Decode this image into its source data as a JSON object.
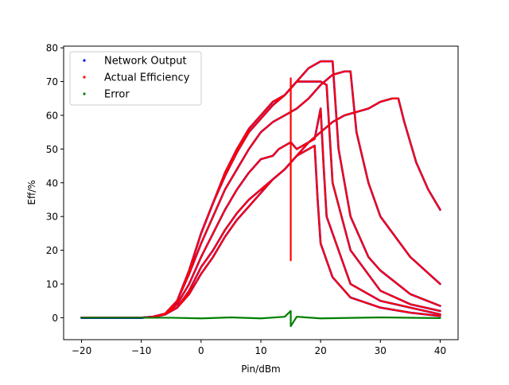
{
  "chart_data": {
    "type": "scatter",
    "title": "",
    "xlabel": "Pin/dBm",
    "ylabel": "Eff/%",
    "xlim": [
      -23,
      43
    ],
    "ylim": [
      -6.5,
      80.5
    ],
    "xticks": [
      -20,
      -10,
      0,
      10,
      20,
      30,
      40
    ],
    "yticks": [
      0,
      10,
      20,
      30,
      40,
      50,
      60,
      70,
      80
    ],
    "grid": false,
    "legend": {
      "placement": "top-left"
    },
    "series": [
      {
        "name": "Network Output",
        "color": "#0000ff",
        "curves": [
          {
            "x": [
              -20,
              -10,
              -8,
              -6,
              -4,
              -2,
              0,
              2,
              4,
              6,
              8,
              10,
              12,
              13,
              14,
              15,
              16,
              17,
              18,
              19,
              20,
              20.5,
              21,
              25,
              30,
              35,
              40
            ],
            "y": [
              0,
              0,
              0.2,
              1,
              4,
              10,
              18,
              25,
              32,
              38,
              43,
              47,
              48,
              50,
              51,
              52,
              50,
              51,
              52,
              53,
              62,
              45,
              30,
              10,
              5,
              3,
              1
            ]
          },
          {
            "x": [
              -20,
              -10,
              -8,
              -6,
              -4,
              -2,
              0,
              2,
              4,
              6,
              8,
              10,
              12,
              14,
              15,
              16,
              17,
              18,
              19,
              19.5,
              20,
              22,
              25,
              30,
              35,
              40
            ],
            "y": [
              0,
              0,
              0.2,
              1,
              3,
              8,
              15,
              20,
              26,
              31,
              35,
              38,
              41,
              44,
              46,
              48,
              49,
              50,
              51,
              35,
              22,
              12,
              6,
              3,
              1.5,
              0.5
            ]
          },
          {
            "x": [
              -20,
              -10,
              -8,
              -6,
              -4,
              -2,
              0,
              2,
              4,
              6,
              8,
              10,
              12,
              14,
              16,
              18,
              19,
              20,
              21,
              22,
              25,
              30,
              35,
              40
            ],
            "y": [
              0,
              0,
              0.3,
              1.2,
              5,
              14,
              25,
              34,
              43,
              50,
              56,
              60,
              64,
              66,
              70,
              70,
              70,
              70,
              69,
              40,
              20,
              8,
              4,
              2
            ]
          },
          {
            "x": [
              -20,
              -10,
              -8,
              -6,
              -4,
              -2,
              0,
              2,
              4,
              6,
              8,
              10,
              12,
              14,
              15,
              16,
              18,
              20,
              22,
              23,
              25,
              28,
              30,
              35,
              40
            ],
            "y": [
              0,
              0,
              0.3,
              1.2,
              5,
              14,
              25,
              34,
              42,
              49,
              55,
              59,
              63,
              66,
              68,
              70,
              74,
              76,
              76,
              50,
              30,
              18,
              14,
              7,
              3.5
            ]
          },
          {
            "x": [
              -20,
              -10,
              -8,
              -6,
              -4,
              -2,
              0,
              2,
              4,
              6,
              8,
              10,
              12,
              14,
              16,
              18,
              20,
              22,
              24,
              25,
              26,
              28,
              30,
              35,
              40
            ],
            "y": [
              0,
              0,
              0.3,
              1.2,
              5,
              13,
              22,
              30,
              38,
              44,
              50,
              55,
              58,
              60,
              62,
              65,
              69,
              72,
              73,
              73,
              55,
              40,
              30,
              18,
              10
            ]
          },
          {
            "x": [
              -20,
              -10,
              -8,
              -6,
              -4,
              -2,
              0,
              2,
              4,
              6,
              8,
              10,
              12,
              14,
              16,
              18,
              20,
              22,
              24,
              26,
              28,
              30,
              32,
              33,
              34,
              36,
              38,
              40
            ],
            "y": [
              0,
              0,
              0.2,
              1,
              3,
              7,
              13,
              18,
              24,
              29,
              33,
              37,
              41,
              44,
              48,
              52,
              55,
              58,
              60,
              61,
              62,
              64,
              65,
              65,
              58,
              46,
              38,
              32
            ]
          }
        ]
      },
      {
        "name": "Actual Efficiency",
        "color": "#ff0000",
        "curves": [
          {
            "x": [
              -20,
              -10,
              -8,
              -6,
              -4,
              -2,
              0,
              2,
              4,
              6,
              8,
              10,
              12,
              13,
              14,
              15,
              16,
              17,
              18,
              19,
              20,
              20.5,
              21,
              25,
              30,
              35,
              40
            ],
            "y": [
              0,
              0,
              0.2,
              1,
              4,
              10,
              18,
              25,
              32,
              38,
              43,
              47,
              48,
              50,
              51,
              52,
              50,
              51,
              52,
              53,
              62,
              45,
              30,
              10,
              5,
              3,
              1
            ]
          },
          {
            "x": [
              -20,
              -10,
              -8,
              -6,
              -4,
              -2,
              0,
              2,
              4,
              6,
              8,
              10,
              12,
              14,
              15,
              16,
              17,
              18,
              19,
              19.5,
              20,
              22,
              25,
              30,
              35,
              40
            ],
            "y": [
              0,
              0,
              0.2,
              1,
              3,
              8,
              15,
              20,
              26,
              31,
              35,
              38,
              41,
              44,
              46,
              48,
              49,
              50,
              51,
              35,
              22,
              12,
              6,
              3,
              1.5,
              0.5
            ]
          },
          {
            "x": [
              -20,
              -10,
              -8,
              -6,
              -4,
              -2,
              0,
              2,
              4,
              6,
              8,
              10,
              12,
              14,
              16,
              18,
              19,
              20,
              21,
              22,
              25,
              30,
              35,
              40
            ],
            "y": [
              0,
              0,
              0.3,
              1.2,
              5,
              14,
              25,
              34,
              43,
              50,
              56,
              60,
              64,
              66,
              70,
              70,
              70,
              70,
              69,
              40,
              20,
              8,
              4,
              2
            ]
          },
          {
            "x": [
              -20,
              -10,
              -8,
              -6,
              -4,
              -2,
              0,
              2,
              4,
              6,
              8,
              10,
              12,
              14,
              15,
              16,
              18,
              20,
              22,
              23,
              25,
              28,
              30,
              35,
              40
            ],
            "y": [
              0,
              0,
              0.3,
              1.2,
              5,
              14,
              25,
              34,
              42,
              49,
              55,
              59,
              63,
              66,
              68,
              70,
              74,
              76,
              76,
              50,
              30,
              18,
              14,
              7,
              3.5
            ]
          },
          {
            "x": [
              -20,
              -10,
              -8,
              -6,
              -4,
              -2,
              0,
              2,
              4,
              6,
              8,
              10,
              12,
              14,
              16,
              18,
              20,
              22,
              24,
              25,
              26,
              28,
              30,
              35,
              40
            ],
            "y": [
              0,
              0,
              0.3,
              1.2,
              5,
              13,
              22,
              30,
              38,
              44,
              50,
              55,
              58,
              60,
              62,
              65,
              69,
              72,
              73,
              73,
              55,
              40,
              30,
              18,
              10
            ]
          },
          {
            "x": [
              -20,
              -10,
              -8,
              -6,
              -4,
              -2,
              0,
              2,
              4,
              6,
              8,
              10,
              12,
              14,
              16,
              18,
              20,
              22,
              24,
              26,
              28,
              30,
              32,
              33,
              34,
              36,
              38,
              40
            ],
            "y": [
              0,
              0,
              0.2,
              1,
              3,
              7,
              13,
              18,
              24,
              29,
              33,
              37,
              41,
              44,
              48,
              52,
              55,
              58,
              60,
              61,
              62,
              64,
              65,
              65,
              58,
              46,
              38,
              32
            ]
          },
          {
            "x": [
              15,
              15
            ],
            "y": [
              17,
              71
            ]
          }
        ]
      },
      {
        "name": "Error",
        "color": "#008000",
        "curves": [
          {
            "x": [
              -20,
              -10,
              -5,
              0,
              5,
              10,
              14,
              15,
              15,
              16,
              20,
              30,
              40
            ],
            "y": [
              0,
              0,
              0,
              -0.2,
              0.1,
              -0.2,
              0.3,
              2,
              -2.5,
              0.3,
              -0.2,
              0.1,
              -0.1
            ]
          }
        ]
      }
    ]
  }
}
